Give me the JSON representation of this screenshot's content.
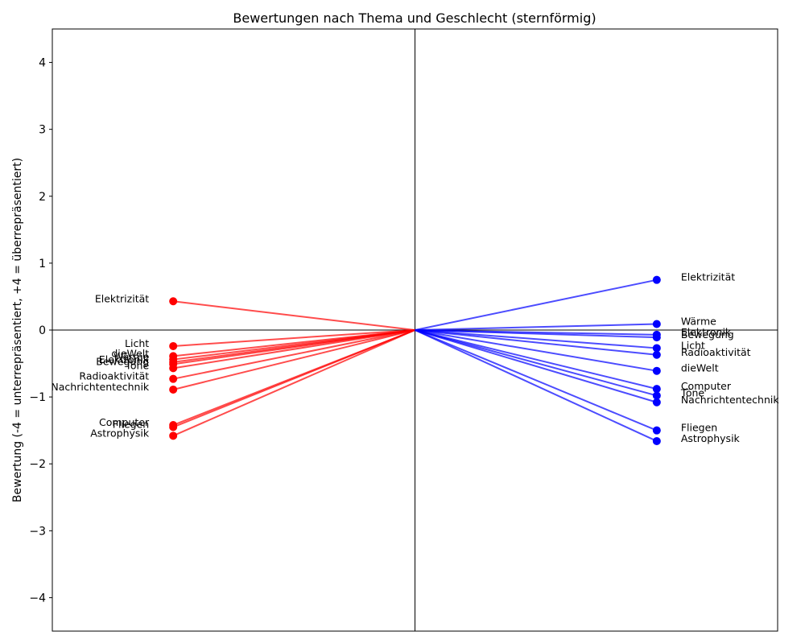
{
  "chart_data": {
    "type": "line",
    "title": "Bewertungen nach Thema und Geschlecht (sternförmig)",
    "xlabel": "",
    "ylabel": "Bewertung (-4 = unterrepräsentiert, +4 = überrepräsentiert)",
    "ylim": [
      -4.5,
      4.5
    ],
    "xlim": [
      -1.5,
      1.5
    ],
    "yticks": [
      -4,
      -3,
      -2,
      -1,
      0,
      1,
      2,
      3,
      4
    ],
    "ytick_labels": [
      "−4",
      "−3",
      "−2",
      "−1",
      "0",
      "1",
      "2",
      "3",
      "4"
    ],
    "grid": false,
    "center": [
      0,
      0
    ],
    "series": [
      {
        "color": "#ff0000",
        "x": -1,
        "points": [
          {
            "label": "Elektrizität",
            "value": 0.43
          },
          {
            "label": "Licht",
            "value": -0.24
          },
          {
            "label": "dieWelt",
            "value": -0.39
          },
          {
            "label": "Wärme",
            "value": -0.44
          },
          {
            "label": "Elektronik",
            "value": -0.48
          },
          {
            "label": "Bewegung",
            "value": -0.51
          },
          {
            "label": "Töne",
            "value": -0.57
          },
          {
            "label": "Radioaktivität",
            "value": -0.73
          },
          {
            "label": "Nachrichtentechnik",
            "value": -0.89
          },
          {
            "label": "Computer",
            "value": -1.42
          },
          {
            "label": "Fliegen",
            "value": -1.45
          },
          {
            "label": "Astrophysik",
            "value": -1.58
          }
        ]
      },
      {
        "color": "#0000ff",
        "x": 1,
        "points": [
          {
            "label": "Elektrizität",
            "value": 0.75
          },
          {
            "label": "Wärme",
            "value": 0.09
          },
          {
            "label": "Elektronik",
            "value": -0.07
          },
          {
            "label": "Bewegung",
            "value": -0.11
          },
          {
            "label": "Licht",
            "value": -0.27
          },
          {
            "label": "Radioaktivität",
            "value": -0.37
          },
          {
            "label": "dieWelt",
            "value": -0.61
          },
          {
            "label": "Computer",
            "value": -0.88
          },
          {
            "label": "Töne",
            "value": -0.98
          },
          {
            "label": "Nachrichtentechnik",
            "value": -1.08
          },
          {
            "label": "Fliegen",
            "value": -1.5
          },
          {
            "label": "Astrophysik",
            "value": -1.66
          }
        ]
      }
    ]
  }
}
